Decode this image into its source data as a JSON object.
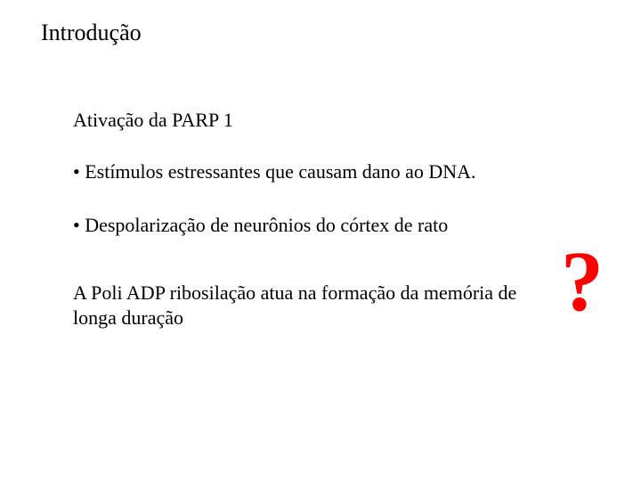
{
  "slide": {
    "title": "Introdução",
    "subtitle": "Ativação da PARP 1",
    "bullets": [
      "• Estímulos estressantes que causam dano ao DNA.",
      "• Despolarização de neurônios do córtex de rato"
    ],
    "paragraph": "A Poli ADP ribosilação atua na formação da memória de longa duração",
    "question_mark": "?",
    "colors": {
      "text": "#000000",
      "accent": "#ff0000",
      "background": "#ffffff"
    },
    "typography": {
      "title_fontsize": 26,
      "body_fontsize": 22,
      "qmark_fontsize": 96,
      "font_family": "Times New Roman"
    }
  }
}
